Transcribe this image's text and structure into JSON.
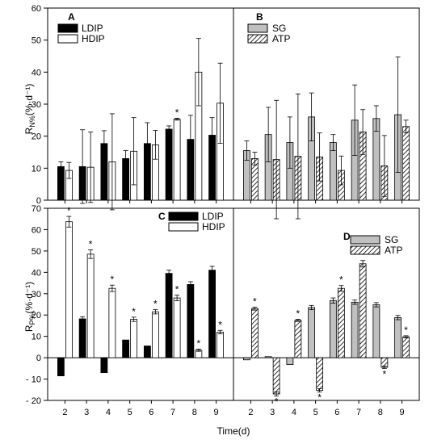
{
  "colors": {
    "ldip": "#000000",
    "hdip": "#ffffff",
    "sg": "#c0c0c0",
    "atp": "#ffffff",
    "hatch": "#000000"
  },
  "chart_data": [
    {
      "panel": "A",
      "type": "bar",
      "categories": [
        "2",
        "3",
        "4",
        "5",
        "6",
        "7",
        "8",
        "9"
      ],
      "ylabel_main": "R",
      "ylabel_sub": "N%",
      "ylabel_tail": "(%·d⁻¹)",
      "ylim": [
        0,
        60
      ],
      "yticks": [
        "0",
        "10",
        "20",
        "30",
        "40",
        "50",
        "60"
      ],
      "ytick_values": [
        0,
        10,
        20,
        30,
        40,
        50,
        60
      ],
      "series": [
        {
          "name": "LDIP",
          "style": "ldip",
          "values": [
            10.5,
            10.5,
            17.7,
            13.0,
            17.7,
            22.2,
            19.0,
            20.3
          ],
          "err": [
            1.5,
            11.5,
            4.0,
            2.5,
            6.5,
            1.0,
            7.5,
            5.5
          ],
          "stars": [
            false,
            false,
            false,
            false,
            false,
            false,
            false,
            false
          ]
        },
        {
          "name": "HDIP",
          "style": "hdip",
          "values": [
            9.3,
            10.3,
            12.0,
            15.3,
            17.3,
            25.3,
            40.0,
            30.3
          ],
          "err": [
            2.5,
            11.0,
            15.0,
            10.5,
            4.5,
            0.3,
            10.5,
            12.5
          ],
          "stars": [
            false,
            false,
            false,
            false,
            false,
            true,
            false,
            false
          ]
        }
      ]
    },
    {
      "panel": "B",
      "type": "bar",
      "categories": [
        "2",
        "3",
        "4",
        "5",
        "6",
        "7",
        "8",
        "9"
      ],
      "ylim": [
        0,
        60
      ],
      "series": [
        {
          "name": "SG",
          "style": "sg",
          "values": [
            15.5,
            20.5,
            18.0,
            26.0,
            18.0,
            25.0,
            25.5,
            26.7
          ],
          "err": [
            3.0,
            8.5,
            8.0,
            7.5,
            2.5,
            11.0,
            4.0,
            18.0
          ],
          "stars": [
            false,
            false,
            false,
            false,
            false,
            false,
            false,
            false
          ]
        },
        {
          "name": "ATP",
          "style": "atp",
          "values": [
            13.0,
            12.7,
            13.7,
            13.5,
            9.3,
            21.3,
            10.7,
            23.0
          ],
          "err": [
            2.0,
            18.5,
            19.5,
            7.5,
            4.5,
            7.0,
            9.5,
            2.0
          ],
          "stars": [
            false,
            false,
            false,
            false,
            false,
            false,
            false,
            false
          ]
        }
      ]
    },
    {
      "panel": "C",
      "type": "bar",
      "categories": [
        "2",
        "3",
        "4",
        "5",
        "6",
        "7",
        "8",
        "9"
      ],
      "ylabel_main": "R",
      "ylabel_sub": "P%",
      "ylabel_tail": "(%·d⁻¹)",
      "ylim": [
        -20,
        70
      ],
      "yticks": [
        "- 20",
        "- 10",
        "0",
        "10",
        "20",
        "30",
        "40",
        "50",
        "60",
        "70"
      ],
      "ytick_values": [
        -20,
        -10,
        0,
        10,
        20,
        30,
        40,
        50,
        60,
        70
      ],
      "series": [
        {
          "name": "LDIP",
          "style": "ldip",
          "values": [
            -8.5,
            18.2,
            -7.0,
            8.3,
            5.5,
            39.5,
            34.3,
            41.0
          ],
          "err": [
            0,
            1.0,
            0,
            0,
            0,
            1.5,
            1.3,
            1.8
          ],
          "stars": [
            false,
            false,
            false,
            false,
            false,
            false,
            false,
            false
          ]
        },
        {
          "name": "HDIP",
          "style": "hdip",
          "values": [
            63.7,
            48.5,
            32.5,
            18.0,
            21.5,
            28.0,
            3.5,
            12.0
          ],
          "err": [
            2.5,
            2.0,
            1.5,
            1.0,
            1.0,
            1.3,
            0.5,
            0.8
          ],
          "stars": [
            true,
            true,
            true,
            true,
            true,
            true,
            true,
            true
          ]
        }
      ]
    },
    {
      "panel": "D",
      "type": "bar",
      "categories": [
        "2",
        "3",
        "4",
        "5",
        "6",
        "7",
        "8",
        "9"
      ],
      "ylim": [
        -20,
        70
      ],
      "series": [
        {
          "name": "SG",
          "style": "sg",
          "values": [
            -1.0,
            0.5,
            -3.2,
            23.5,
            26.8,
            26.0,
            24.8,
            18.8
          ],
          "err": [
            0,
            0,
            0,
            1.0,
            1.2,
            1.0,
            1.0,
            1.0
          ],
          "stars": [
            false,
            false,
            false,
            false,
            false,
            false,
            false,
            false
          ]
        },
        {
          "name": "ATP",
          "style": "atp",
          "values": [
            23.0,
            -17.0,
            17.5,
            -15.3,
            32.5,
            44.0,
            -4.5,
            9.8
          ],
          "err": [
            0.7,
            1.0,
            0.5,
            0.8,
            1.3,
            1.5,
            0.5,
            0.5
          ],
          "stars": [
            true,
            true,
            true,
            true,
            true,
            true,
            true,
            true
          ]
        }
      ]
    }
  ],
  "xlabel": "Time(d)",
  "star_symbol": "*"
}
